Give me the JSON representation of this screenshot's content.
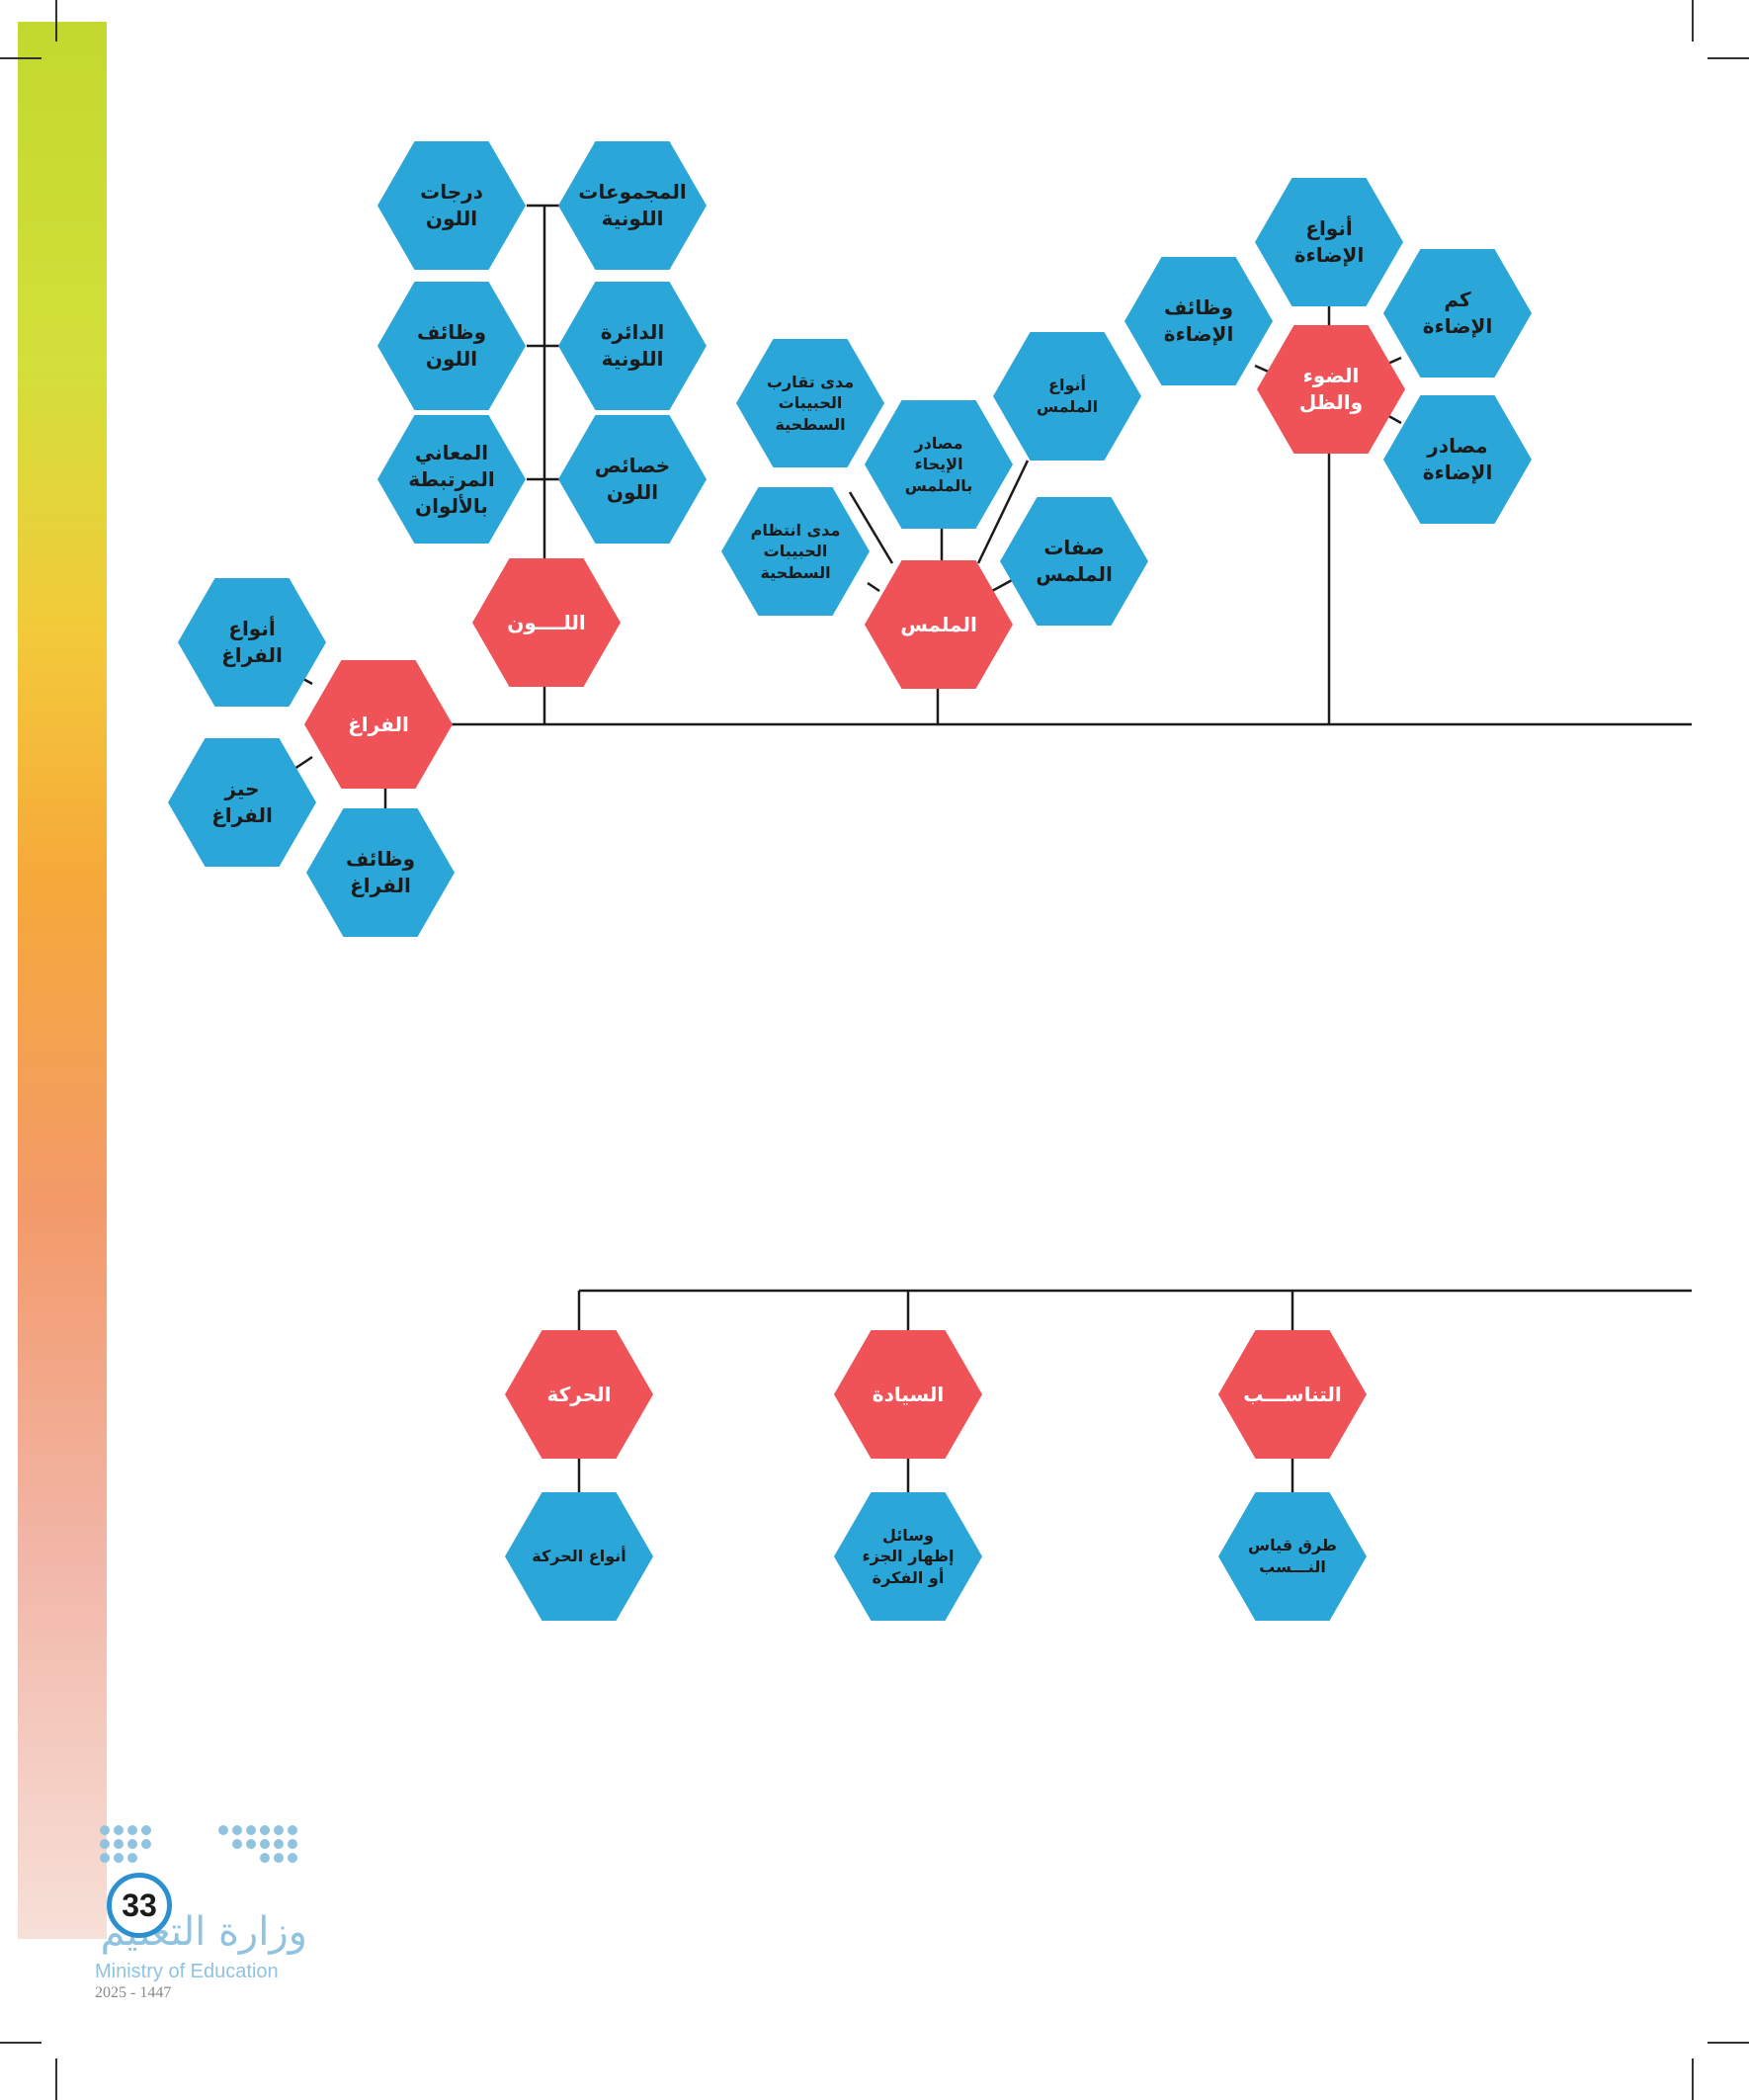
{
  "top_tree": {
    "space": {
      "label": "الفراغ",
      "children": [
        "أنواع الفراغ",
        "حيز الفراغ",
        "وظائف الفراغ"
      ]
    },
    "color": {
      "label": "اللــــون",
      "children": [
        "درجات اللون",
        "المجموعات اللونية",
        "وظائف اللون",
        "الدائرة اللونية",
        "المعاني المرتبطة بالألوان",
        "خصائص اللون"
      ]
    },
    "texture": {
      "label": "الملمس",
      "children": [
        "مدى تقارب الحبيبات السطحية",
        "مصادر الإيحاء بالملمس",
        "أنواع الملمس",
        "مدى انتظام الحبيبات السطحية",
        "صفات الملمس"
      ]
    },
    "light": {
      "label": "الضوء والظل",
      "children": [
        "أنواع الإضاءة",
        "وظائف الإضاءة",
        "كم الإضاءة",
        "مصادر الإضاءة"
      ]
    }
  },
  "bottom_tree": {
    "movement": {
      "label": "الحركة",
      "child": "أنواع الحركة"
    },
    "dominance": {
      "label": "السيادة",
      "child": "وسائل إظهار الجزء أو الفكرة"
    },
    "proportion": {
      "label": "التناســـب",
      "child": "طرق قياس النـــسب"
    }
  },
  "footer": {
    "page_number": "33",
    "ministry_ar": "وزارة التعليم",
    "ministry_en": "Ministry of Education",
    "year": "2025 - 1447"
  },
  "colors": {
    "main_node": "#ef5358",
    "sub_node": "#2ba6d8",
    "line": "#1b1b1b"
  }
}
